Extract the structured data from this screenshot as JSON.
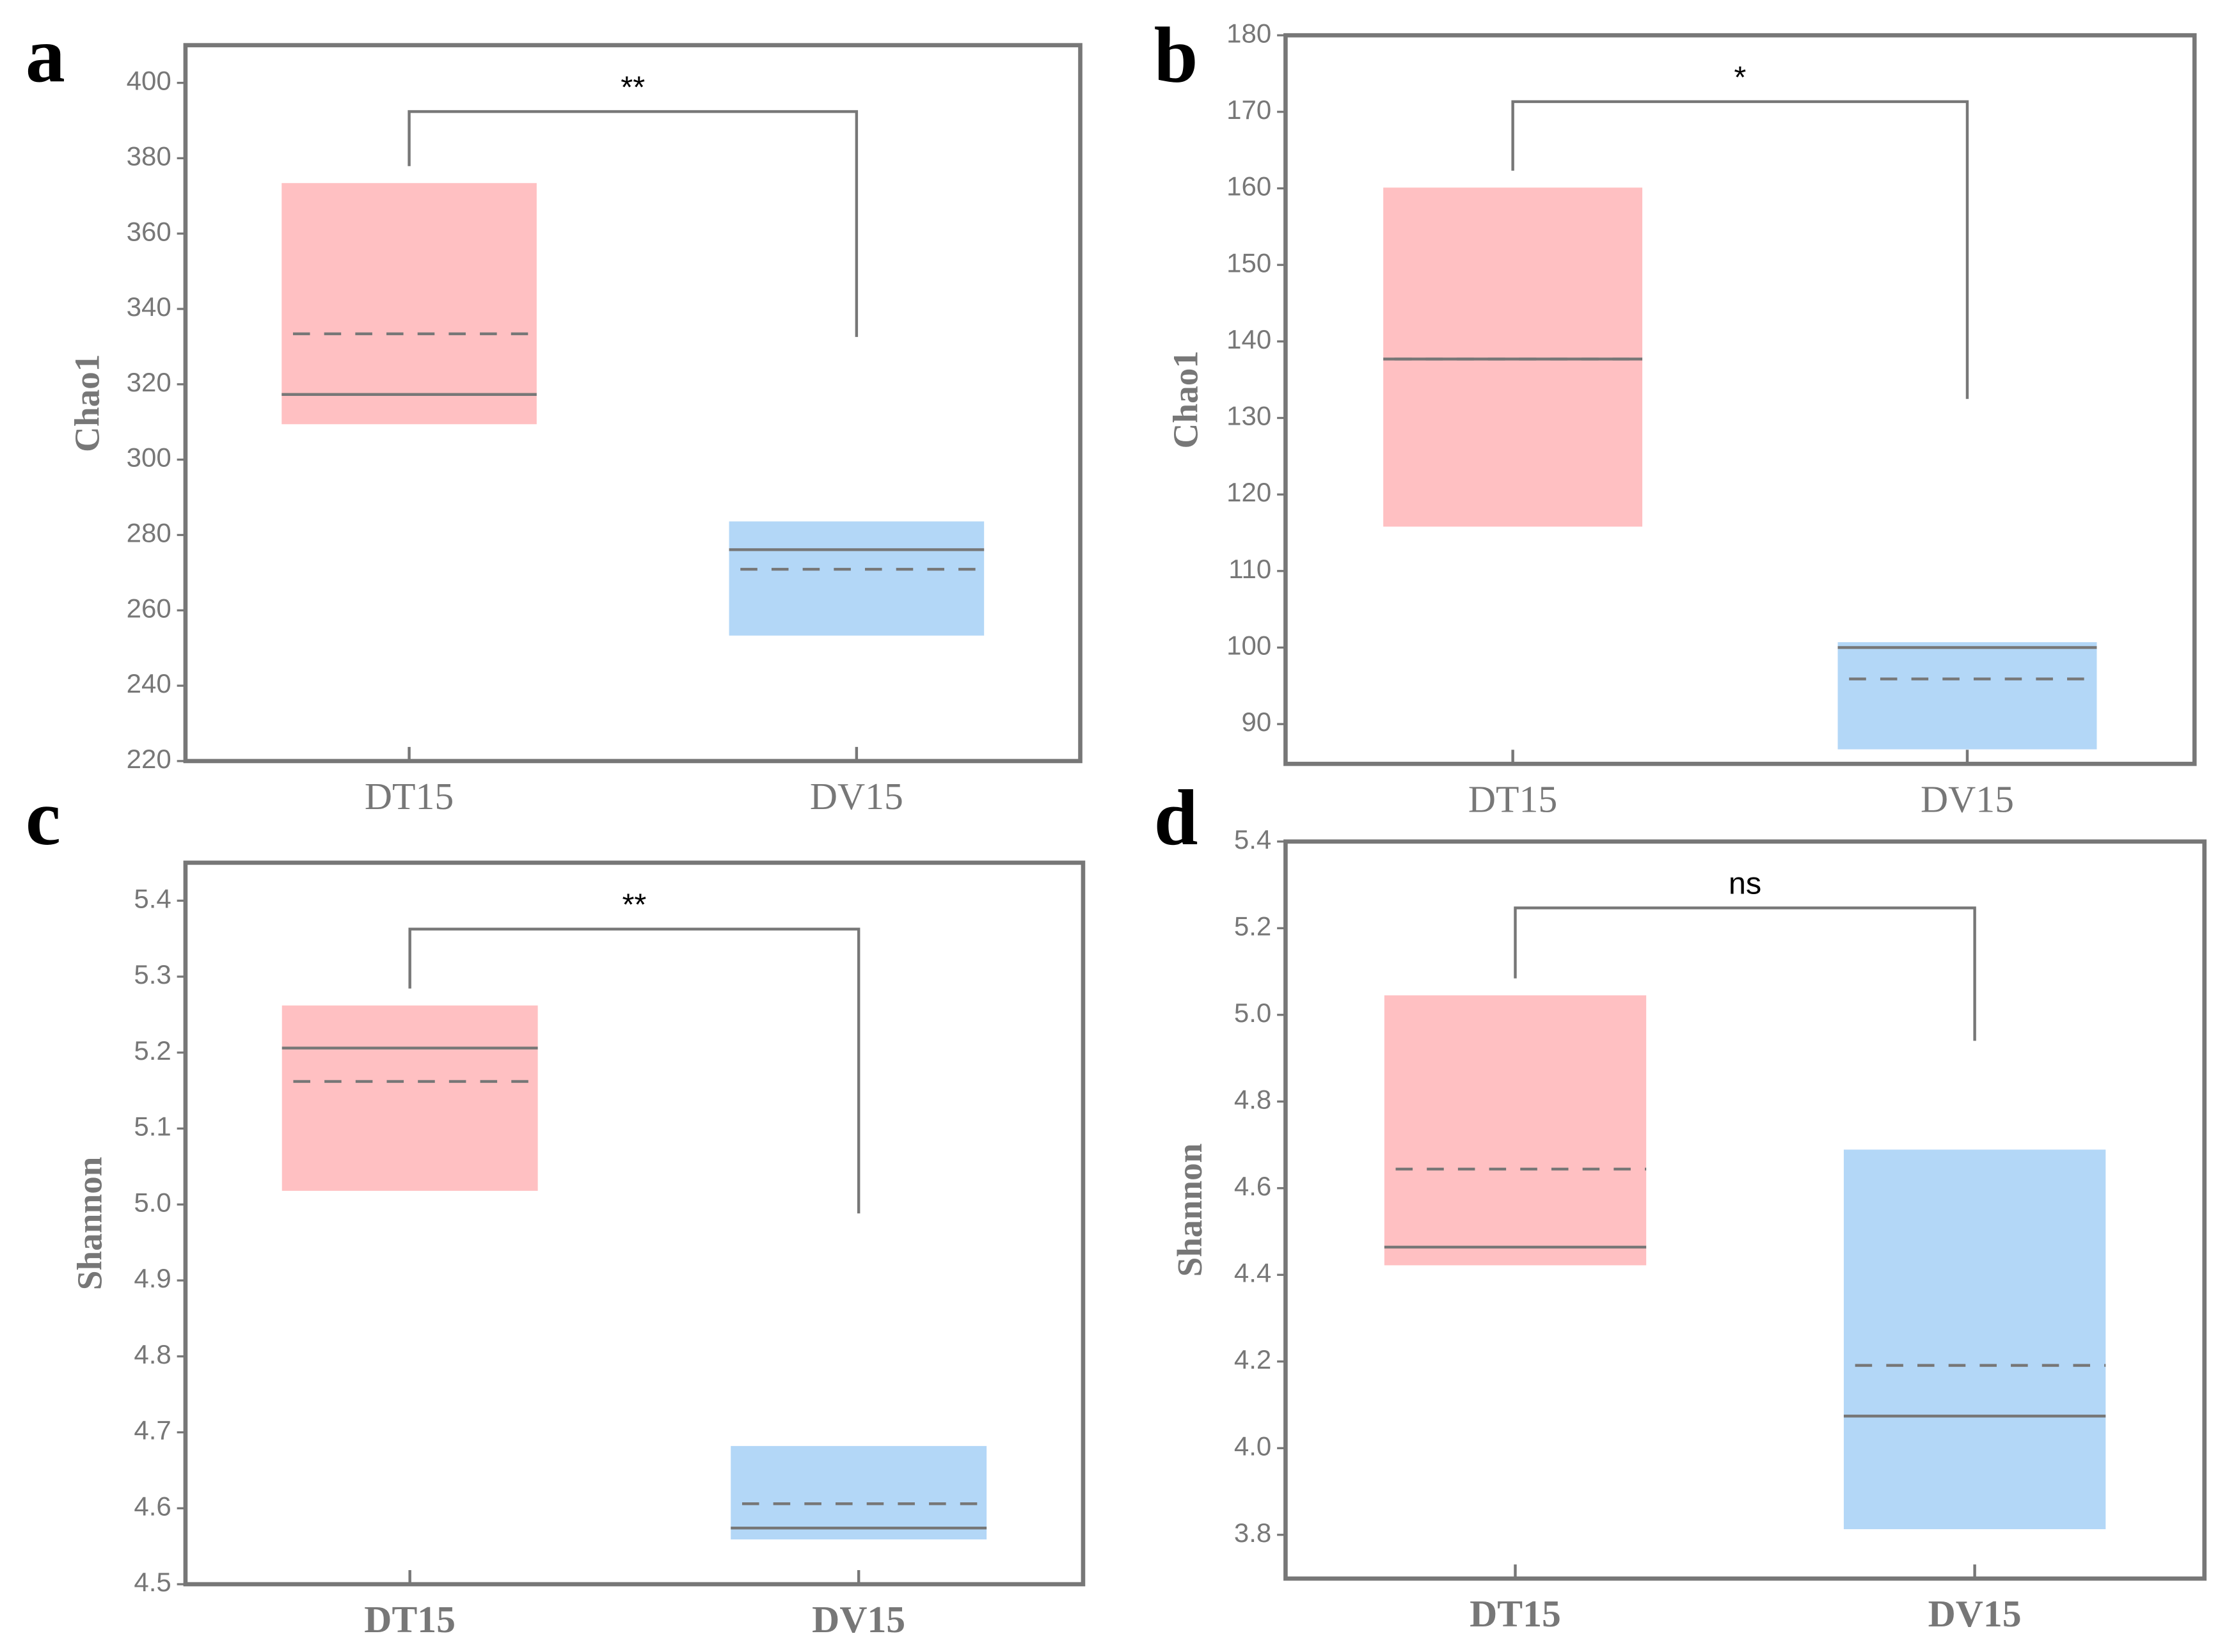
{
  "chart_data": [
    {
      "type": "box",
      "label": "a",
      "y_label": "Chao1",
      "categories": [
        "DT15",
        "DV15"
      ],
      "q1": [
        309.4,
        253.3
      ],
      "q3": [
        373.4,
        283.6
      ],
      "median": [
        317.3,
        276.1
      ],
      "mean": [
        333.4,
        270.9
      ],
      "colors": [
        "#ffc0c2",
        "#b3d7f7"
      ],
      "ylim": [
        220,
        410
      ],
      "yticks": [
        220,
        240,
        260,
        280,
        300,
        320,
        340,
        360,
        380,
        400
      ],
      "annotation": "**"
    },
    {
      "type": "box",
      "label": "b",
      "y_label": "Chao1",
      "categories": [
        "DT15",
        "DV15"
      ],
      "q1": [
        115.8,
        86.7
      ],
      "q3": [
        160.1,
        100.7
      ],
      "median": [
        137.7,
        100.0
      ],
      "mean": [
        137.7,
        95.9
      ],
      "colors": [
        "#ffc0c2",
        "#b3d7f7"
      ],
      "ylim": [
        84.8,
        180
      ],
      "yticks": [
        90,
        100,
        110,
        120,
        130,
        140,
        150,
        160,
        170,
        180
      ],
      "annotation": "*"
    },
    {
      "type": "box",
      "label": "c",
      "y_label": "Shannon",
      "categories": [
        "DT15",
        "DV15"
      ],
      "q1": [
        5.018,
        4.559
      ],
      "q3": [
        5.262,
        4.682
      ],
      "median": [
        5.206,
        4.574
      ],
      "mean": [
        5.162,
        4.606
      ],
      "colors": [
        "#ffc0c2",
        "#b3d7f7"
      ],
      "ylim": [
        4.5,
        5.45
      ],
      "yticks": [
        4.5,
        4.6,
        4.7,
        4.8,
        4.9,
        {
          "value": 5,
          "label": "5.0"
        },
        5.1,
        5.2,
        5.3,
        5.4
      ],
      "annotation": "**",
      "bold_categories": true
    },
    {
      "type": "box",
      "label": "d",
      "y_label": "Shannon",
      "categories": [
        "DT15",
        "DV15"
      ],
      "q1": [
        4.422,
        3.813
      ],
      "q3": [
        5.045,
        4.689
      ],
      "median": [
        4.464,
        4.074
      ],
      "mean": [
        4.644,
        4.191
      ],
      "colors": [
        "#ffc0c2",
        "#b3d7f7"
      ],
      "ylim": [
        3.699,
        5.4
      ],
      "yticks": [
        3.8,
        {
          "value": 4,
          "label": "4.0"
        },
        4.2,
        4.4,
        4.6,
        4.8,
        {
          "value": 5,
          "label": "5.0"
        },
        5.2,
        5.4
      ],
      "annotation": "ns",
      "bold_categories": true
    }
  ]
}
